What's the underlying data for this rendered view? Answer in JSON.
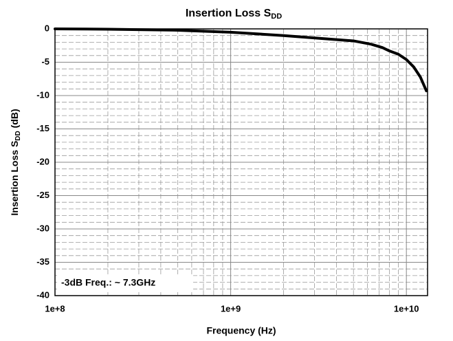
{
  "chart_data": {
    "type": "line",
    "title": "Insertion Loss S",
    "title_subscript": "DD",
    "ylabel": {
      "text": "Insertion Loss S",
      "subscript": "DD",
      "suffix": " (dB)"
    },
    "xlabel": "Frequency (Hz)",
    "annotation": "-3dB Freq.: ~ 7.3GHz",
    "x": [
      100000000,
      200000000,
      500000000,
      1000000000,
      2000000000,
      3500000000,
      5000000000,
      6300000000,
      7300000000,
      8000000000,
      9000000000,
      10000000000,
      11000000000,
      12000000000,
      13000000000
    ],
    "values": [
      0,
      -0.05,
      -0.2,
      -0.5,
      -1,
      -1.5,
      -1.8,
      -2.3,
      -2.8,
      -3.3,
      -3.8,
      -4.6,
      -5.7,
      -7.2,
      -9.3
    ],
    "color": "#000000",
    "xscale": "log",
    "xlim": [
      100000000,
      13200000000
    ],
    "xticks": [
      {
        "value": 100000000,
        "label": "1e+8"
      },
      {
        "value": 1000000000,
        "label": "1e+9"
      },
      {
        "value": 10000000000,
        "label": "1e+10"
      }
    ],
    "xminor": [
      2,
      3,
      4,
      5,
      6,
      7,
      8,
      9
    ],
    "ylim": [
      -40,
      0
    ],
    "yticks": [
      -40,
      -35,
      -30,
      -25,
      -20,
      -15,
      -10,
      -5,
      0
    ],
    "yminor_step": 1,
    "grid": true
  }
}
